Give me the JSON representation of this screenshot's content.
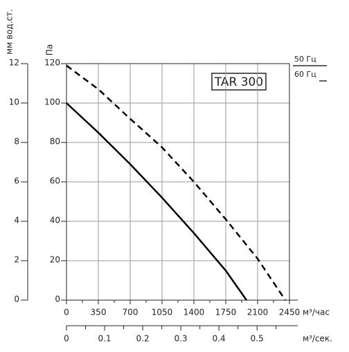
{
  "chart_data": {
    "type": "line",
    "title": "TAR 300",
    "ylabel": "Па",
    "ylim": [
      0,
      120
    ],
    "yticks": [
      0,
      20,
      40,
      60,
      80,
      100,
      120
    ],
    "y2label": "мм вод.ст.",
    "y2lim": [
      0,
      12
    ],
    "y2ticks": [
      0,
      2,
      4,
      6,
      8,
      10,
      12
    ],
    "xlabel": "м³/час",
    "xlim": [
      0,
      2450
    ],
    "xticks": [
      0,
      350,
      700,
      1050,
      1400,
      1750,
      2100,
      2450
    ],
    "xminorticks": [
      175,
      525,
      875,
      1225,
      1575,
      1925,
      2275
    ],
    "x2label": "м³/сек.",
    "x2lim": [
      0,
      0.585
    ],
    "x2ticks": [
      0,
      0.1,
      0.2,
      0.3,
      0.4,
      0.5
    ],
    "x2minorticks": [
      0.05,
      0.15,
      0.25,
      0.35,
      0.45,
      0.55
    ],
    "grid": true,
    "series": [
      {
        "name": "50 Гц",
        "color": "#000000",
        "dash": false,
        "x": [
          0,
          350,
          700,
          1050,
          1400,
          1750,
          1978
        ],
        "values": [
          100,
          85,
          69,
          52,
          34,
          15,
          0
        ]
      },
      {
        "name": "60 Гц",
        "color": "#000000",
        "dash": true,
        "x": [
          0,
          350,
          700,
          1050,
          1400,
          1750,
          2100,
          2404
        ],
        "values": [
          119,
          107,
          92,
          77.5,
          60,
          41,
          21,
          0
        ]
      }
    ]
  }
}
